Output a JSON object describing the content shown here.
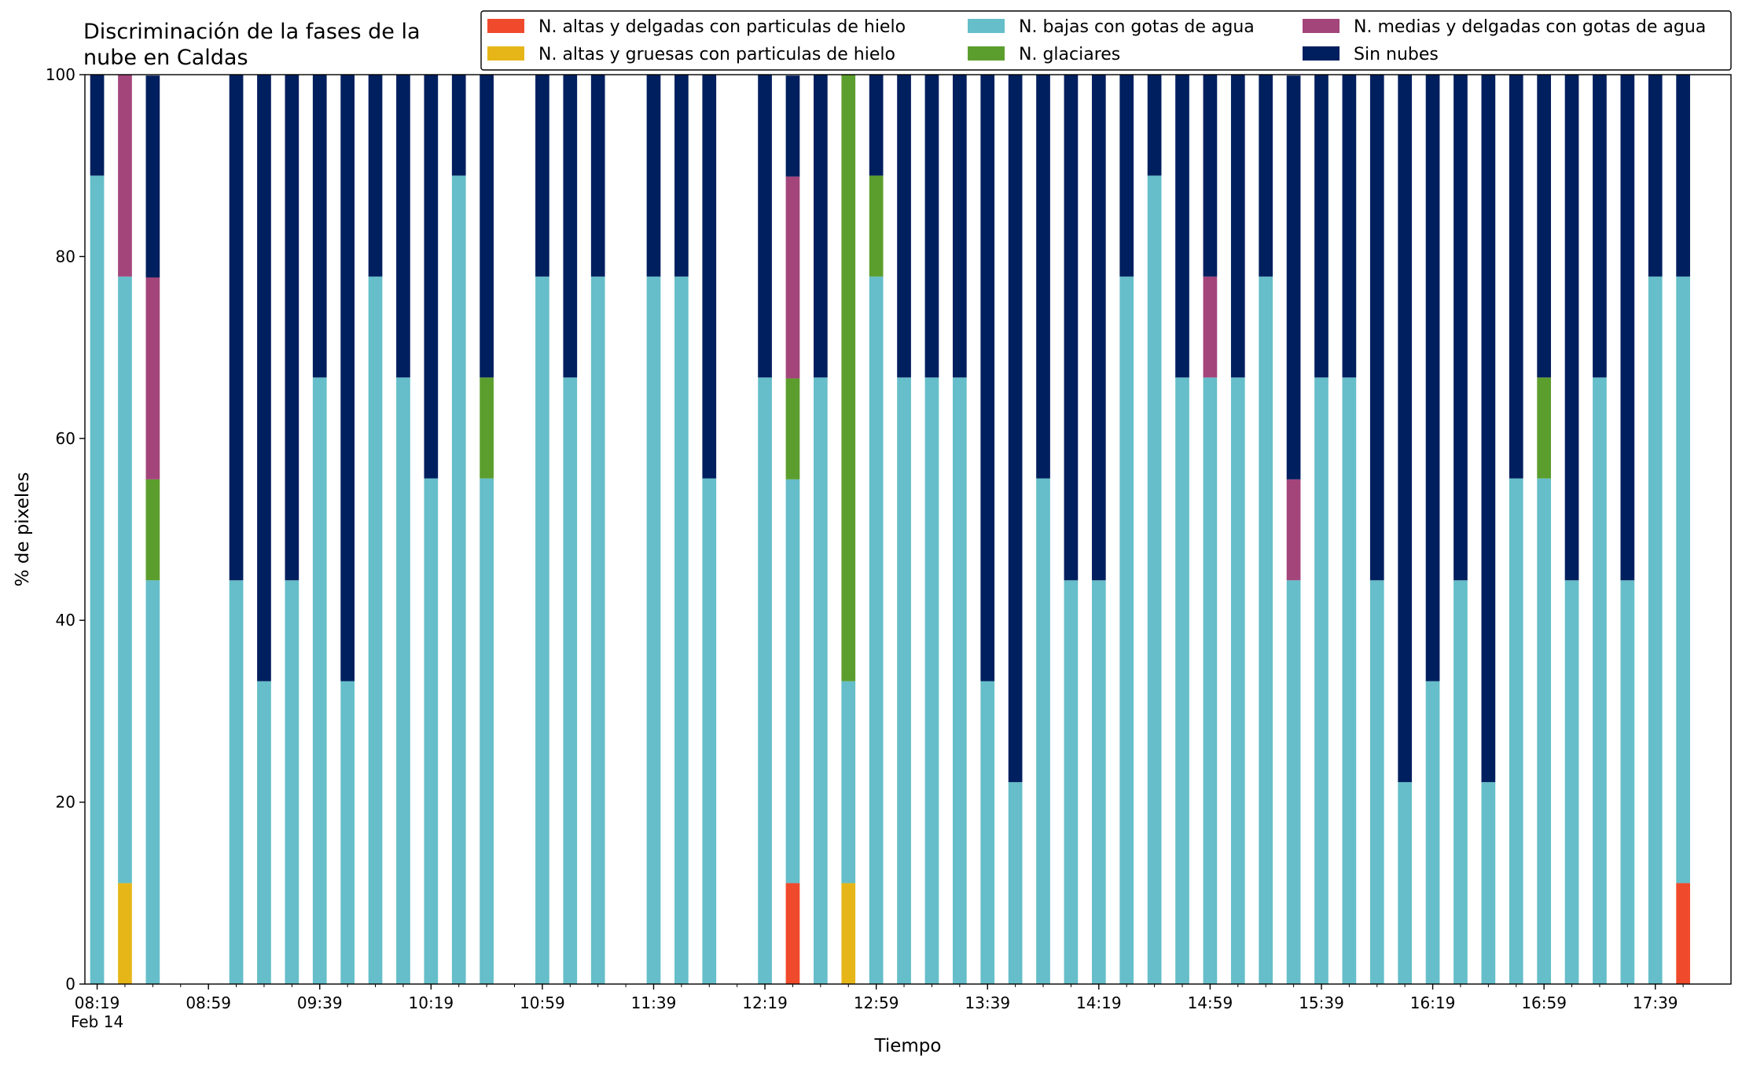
{
  "chart_data": {
    "type": "stacked_bar",
    "title": "Discriminación de la fases de la nube en Caldas",
    "xlabel": "Tiempo",
    "ylabel": "% de pixeles",
    "x_date_label": "Feb 14",
    "categories": [
      "08:19",
      "08:29",
      "08:39",
      "08:49",
      "08:59",
      "09:09",
      "09:19",
      "09:29",
      "09:39",
      "09:49",
      "09:59",
      "10:09",
      "10:19",
      "10:29",
      "10:39",
      "10:49",
      "10:59",
      "11:09",
      "11:19",
      "11:29",
      "11:39",
      "11:49",
      "11:59",
      "12:09",
      "12:19",
      "12:29",
      "12:39",
      "12:49",
      "12:59",
      "13:09",
      "13:19",
      "13:29",
      "13:39",
      "13:49",
      "13:59",
      "14:09",
      "14:19",
      "14:29",
      "14:39",
      "14:49",
      "14:59",
      "15:09",
      "15:19",
      "15:29",
      "15:39",
      "15:49",
      "15:59",
      "16:09",
      "16:19",
      "16:29",
      "16:39",
      "16:49",
      "16:59",
      "17:09",
      "17:19",
      "17:29",
      "17:39",
      "17:49"
    ],
    "xticks": [
      "08:19",
      "08:59",
      "09:39",
      "10:19",
      "10:59",
      "11:39",
      "12:19",
      "12:59",
      "13:39",
      "14:19",
      "14:59",
      "15:39",
      "16:19",
      "16:59",
      "17:39"
    ],
    "ylim": [
      0,
      100
    ],
    "yticks": [
      0,
      20,
      40,
      60,
      80,
      100
    ],
    "legend": "upper right",
    "legend_columns": 3,
    "series": [
      {
        "name": "N. altas y delgadas con particulas de hielo",
        "color": "#f04a2c",
        "values": [
          0,
          0,
          0,
          null,
          null,
          0,
          0,
          0,
          0,
          0,
          0,
          0,
          0,
          0,
          0,
          null,
          0,
          0,
          0,
          null,
          0,
          0,
          0,
          null,
          0,
          11.1,
          0,
          0,
          0,
          0,
          0,
          0,
          0,
          0,
          0,
          0,
          0,
          0,
          0,
          0,
          0,
          0,
          0,
          0,
          0,
          0,
          0,
          0,
          0,
          0,
          0,
          0,
          0,
          0,
          0,
          0,
          0,
          11.1
        ]
      },
      {
        "name": "N. altas y gruesas con particulas de hielo",
        "color": "#e6b619",
        "values": [
          0,
          11.1,
          0,
          null,
          null,
          0,
          0,
          0,
          0,
          0,
          0,
          0,
          0,
          0,
          0,
          null,
          0,
          0,
          0,
          null,
          0,
          0,
          0,
          null,
          0,
          0,
          0,
          11.1,
          0,
          0,
          0,
          0,
          0,
          0,
          0,
          0,
          0,
          0,
          0,
          0,
          0,
          0,
          0,
          0,
          0,
          0,
          0,
          0,
          0,
          0,
          0,
          0,
          0,
          0,
          0,
          0,
          0,
          0
        ]
      },
      {
        "name": "N. bajas con gotas de agua",
        "color": "#65bec9",
        "values": [
          88.9,
          66.7,
          44.4,
          null,
          null,
          44.4,
          33.3,
          44.4,
          66.7,
          33.3,
          77.8,
          66.7,
          55.6,
          88.9,
          55.6,
          null,
          77.8,
          66.7,
          77.8,
          null,
          77.8,
          77.8,
          55.6,
          null,
          66.7,
          44.4,
          66.7,
          22.2,
          77.8,
          66.7,
          66.7,
          66.7,
          33.3,
          22.2,
          55.6,
          44.4,
          44.4,
          77.8,
          88.9,
          66.7,
          66.7,
          66.7,
          77.8,
          44.4,
          66.7,
          66.7,
          44.4,
          22.2,
          33.3,
          44.4,
          22.2,
          55.6,
          55.6,
          44.4,
          66.7,
          44.4,
          77.8,
          66.7
        ]
      },
      {
        "name": "N. glaciares",
        "color": "#5c9e2e",
        "values": [
          0,
          0,
          11.1,
          null,
          null,
          0,
          0,
          0,
          0,
          0,
          0,
          0,
          0,
          0,
          11.1,
          null,
          0,
          0,
          0,
          null,
          0,
          0,
          0,
          null,
          0,
          11.1,
          0,
          66.7,
          11.1,
          0,
          0,
          0,
          0,
          0,
          0,
          0,
          0,
          0,
          0,
          0,
          0,
          0,
          0,
          0,
          0,
          0,
          0,
          0,
          0,
          0,
          0,
          0,
          11.1,
          0,
          0,
          0,
          0,
          0
        ]
      },
      {
        "name": "N. medias y delgadas con gotas de agua",
        "color": "#a3457a",
        "values": [
          0,
          22.2,
          22.2,
          null,
          null,
          0,
          0,
          0,
          0,
          0,
          0,
          0,
          0,
          0,
          0,
          null,
          0,
          0,
          0,
          null,
          0,
          0,
          0,
          null,
          0,
          22.2,
          0,
          0,
          0,
          0,
          0,
          0,
          0,
          0,
          0,
          0,
          0,
          0,
          0,
          0,
          11.1,
          0,
          0,
          11.1,
          0,
          0,
          0,
          0,
          0,
          0,
          0,
          0,
          0,
          0,
          0,
          0,
          0,
          0
        ]
      },
      {
        "name": "Sin nubes",
        "color": "#001f5f",
        "values": [
          11.1,
          0,
          22.2,
          null,
          null,
          55.6,
          66.7,
          55.6,
          33.3,
          66.7,
          22.2,
          33.3,
          44.4,
          11.1,
          33.3,
          null,
          22.2,
          33.3,
          22.2,
          null,
          22.2,
          22.2,
          44.4,
          null,
          33.3,
          11.1,
          33.3,
          0,
          11.1,
          33.3,
          33.3,
          33.3,
          66.7,
          77.8,
          44.4,
          55.6,
          55.6,
          22.2,
          11.1,
          33.3,
          22.2,
          33.3,
          22.2,
          44.4,
          33.3,
          33.3,
          55.6,
          77.8,
          66.7,
          55.6,
          77.8,
          44.4,
          33.3,
          55.6,
          33.3,
          55.6,
          22.2,
          22.2
        ]
      }
    ]
  }
}
